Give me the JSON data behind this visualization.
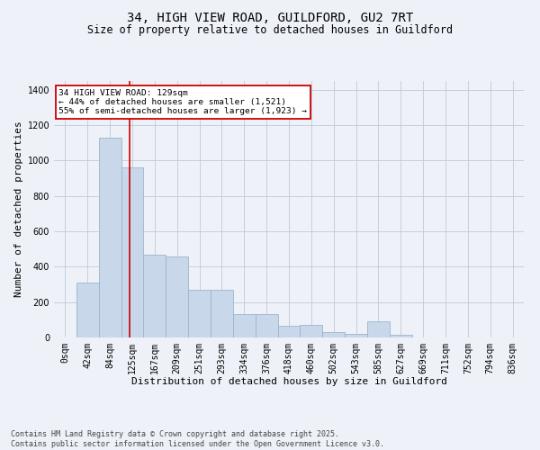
{
  "title_line1": "34, HIGH VIEW ROAD, GUILDFORD, GU2 7RT",
  "title_line2": "Size of property relative to detached houses in Guildford",
  "xlabel": "Distribution of detached houses by size in Guildford",
  "ylabel": "Number of detached properties",
  "bar_labels": [
    "0sqm",
    "42sqm",
    "84sqm",
    "125sqm",
    "167sqm",
    "209sqm",
    "251sqm",
    "293sqm",
    "334sqm",
    "376sqm",
    "418sqm",
    "460sqm",
    "502sqm",
    "543sqm",
    "585sqm",
    "627sqm",
    "669sqm",
    "711sqm",
    "752sqm",
    "794sqm",
    "836sqm"
  ],
  "bar_values": [
    2,
    310,
    1130,
    960,
    470,
    460,
    270,
    270,
    130,
    130,
    65,
    70,
    30,
    20,
    90,
    15,
    0,
    0,
    0,
    0,
    0
  ],
  "bar_color": "#c8d8ea",
  "bar_edgecolor": "#9ab5cc",
  "bar_linewidth": 0.6,
  "vline_x_index": 2.88,
  "vline_color": "#cc0000",
  "vline_linewidth": 1.2,
  "ylim": [
    0,
    1450
  ],
  "yticks": [
    0,
    200,
    400,
    600,
    800,
    1000,
    1200,
    1400
  ],
  "grid_color": "#c0c8d8",
  "bg_color": "#eef2f8",
  "annotation_text": "34 HIGH VIEW ROAD: 129sqm\n← 44% of detached houses are smaller (1,521)\n55% of semi-detached houses are larger (1,923) →",
  "annotation_box_facecolor": "#ffffff",
  "annotation_box_edgecolor": "#cc0000",
  "annotation_fontsize": 6.8,
  "footnote": "Contains HM Land Registry data © Crown copyright and database right 2025.\nContains public sector information licensed under the Open Government Licence v3.0.",
  "title1_fontsize": 10,
  "title2_fontsize": 8.5,
  "xlabel_fontsize": 8,
  "ylabel_fontsize": 8,
  "tick_fontsize": 7,
  "footnote_fontsize": 6
}
